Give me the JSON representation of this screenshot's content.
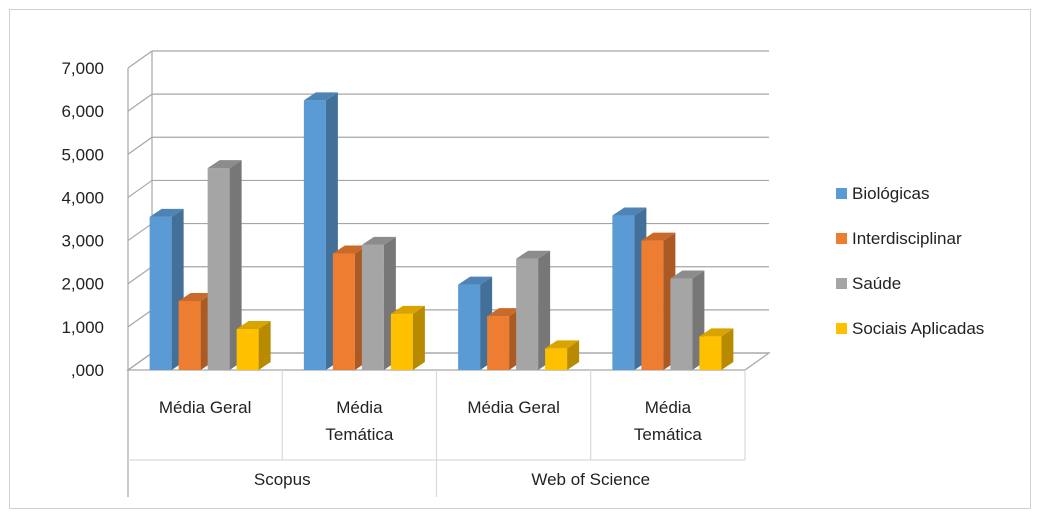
{
  "chart_data": {
    "type": "bar",
    "groups": [
      "Scopus",
      "Web of Science"
    ],
    "categories": [
      "Média Geral",
      "Média Temática",
      "Média Geral",
      "Média Temática"
    ],
    "category_lines": [
      [
        "Média Geral"
      ],
      [
        "Média",
        "Temática"
      ],
      [
        "Média Geral"
      ],
      [
        "Média",
        "Temática"
      ]
    ],
    "series": [
      {
        "name": "Biológicas",
        "values": [
          3.55,
          6.25,
          1.98,
          3.58
        ]
      },
      {
        "name": "Interdisciplinar",
        "values": [
          1.6,
          2.7,
          1.25,
          3.0
        ]
      },
      {
        "name": "Saúde",
        "values": [
          4.68,
          2.9,
          2.58,
          2.12
        ]
      },
      {
        "name": "Sociais Aplicadas",
        "values": [
          0.95,
          1.3,
          0.5,
          0.78
        ]
      }
    ],
    "y_tick_labels": [
      ",000",
      "1,000",
      "2,000",
      "3,000",
      "4,000",
      "5,000",
      "6,000",
      "7,000"
    ],
    "ylim": [
      0,
      7
    ],
    "legend_position": "right",
    "grid": true,
    "colors": {
      "Biológicas": "#5b9bd5",
      "Interdisciplinar": "#ed7d31",
      "Saúde": "#a5a5a5",
      "Sociais Aplicadas": "#ffc000"
    }
  }
}
